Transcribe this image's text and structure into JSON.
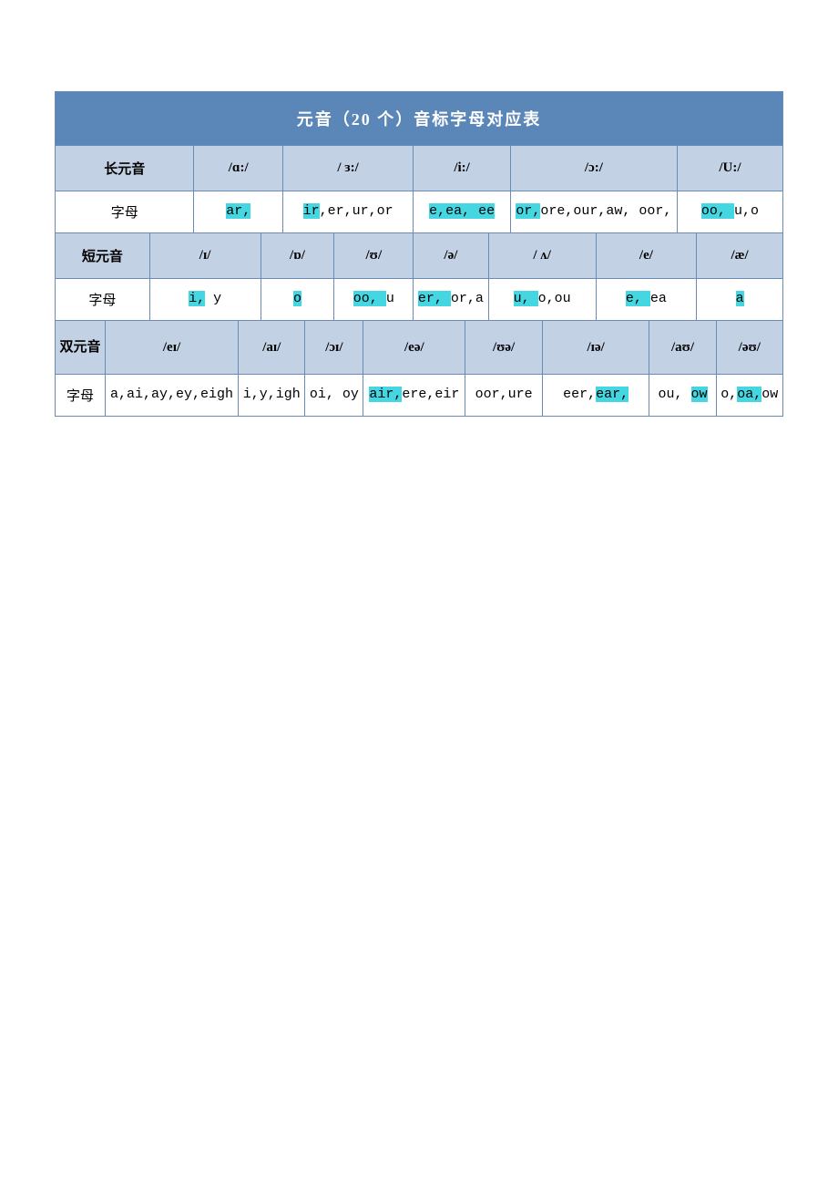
{
  "title": "元音（20 个）音标字母对应表",
  "long": {
    "header": "长元音",
    "ipa": [
      "/ɑ:/",
      "/  ɜ:/",
      "/i:/",
      "/ɔ:/",
      "/U:/"
    ]
  },
  "short": {
    "header": "短元音",
    "ipa": [
      "/ɪ/",
      "/ɒ/",
      "/ʊ/",
      "/ə/",
      "/  ʌ/",
      "/e/",
      "/æ/"
    ]
  },
  "diph": {
    "header": "双元音",
    "ipa": [
      "/eɪ/",
      "/aɪ/",
      "/ɔɪ/",
      "/eə/",
      "/ʊə/",
      "/ɪə/",
      "/aʊ/",
      "/əʊ/"
    ]
  },
  "letters_label": "字母",
  "long_letters": {
    "c0": [
      [
        "ar,",
        true
      ]
    ],
    "c1": [
      [
        "ir",
        true
      ],
      [
        ",er,ur,or",
        false
      ]
    ],
    "c2": [
      [
        "e,ea, ",
        true
      ],
      [
        "ee",
        true
      ]
    ],
    "c3": [
      [
        "or,",
        true
      ],
      [
        "ore,our,aw, oor,",
        false
      ]
    ],
    "c4": [
      [
        "oo, ",
        true
      ],
      [
        "u,o",
        false
      ]
    ]
  },
  "short_letters": {
    "c0": [
      [
        "i,",
        true
      ],
      [
        " y",
        false
      ]
    ],
    "c1": [
      [
        "o",
        true
      ]
    ],
    "c2": [
      [
        "oo, ",
        true
      ],
      [
        "u",
        false
      ]
    ],
    "c3": [
      [
        "er, ",
        true
      ],
      [
        "or,a",
        false
      ]
    ],
    "c4": [
      [
        "u, ",
        true
      ],
      [
        "o,ou",
        false
      ]
    ],
    "c5": [
      [
        "e, ",
        true
      ],
      [
        "ea",
        false
      ]
    ],
    "c6": [
      [
        "a",
        true
      ]
    ]
  },
  "diph_letters": {
    "c0": [
      [
        "a,ai,ay,ey,eigh",
        false
      ]
    ],
    "c1": [
      [
        "i,y,igh",
        false
      ]
    ],
    "c2": [
      [
        "oi, oy",
        false
      ]
    ],
    "c3": [
      [
        "air,",
        true
      ],
      [
        "ere,eir",
        false
      ]
    ],
    "c4": [
      [
        "oor,ure",
        false
      ]
    ],
    "c5": [
      [
        "eer,",
        false
      ],
      [
        "ear,",
        true
      ]
    ],
    "c6": [
      [
        "ou, ",
        false
      ],
      [
        "ow",
        true
      ]
    ],
    "c7": [
      [
        "o,",
        false
      ],
      [
        "oa,",
        true
      ],
      [
        "ow",
        false
      ]
    ]
  },
  "colors": {
    "title_bg": "#5b87b8",
    "head_bg": "#c2d1e4",
    "highlight": "#44d7e2",
    "border": "#6a8ab8"
  }
}
